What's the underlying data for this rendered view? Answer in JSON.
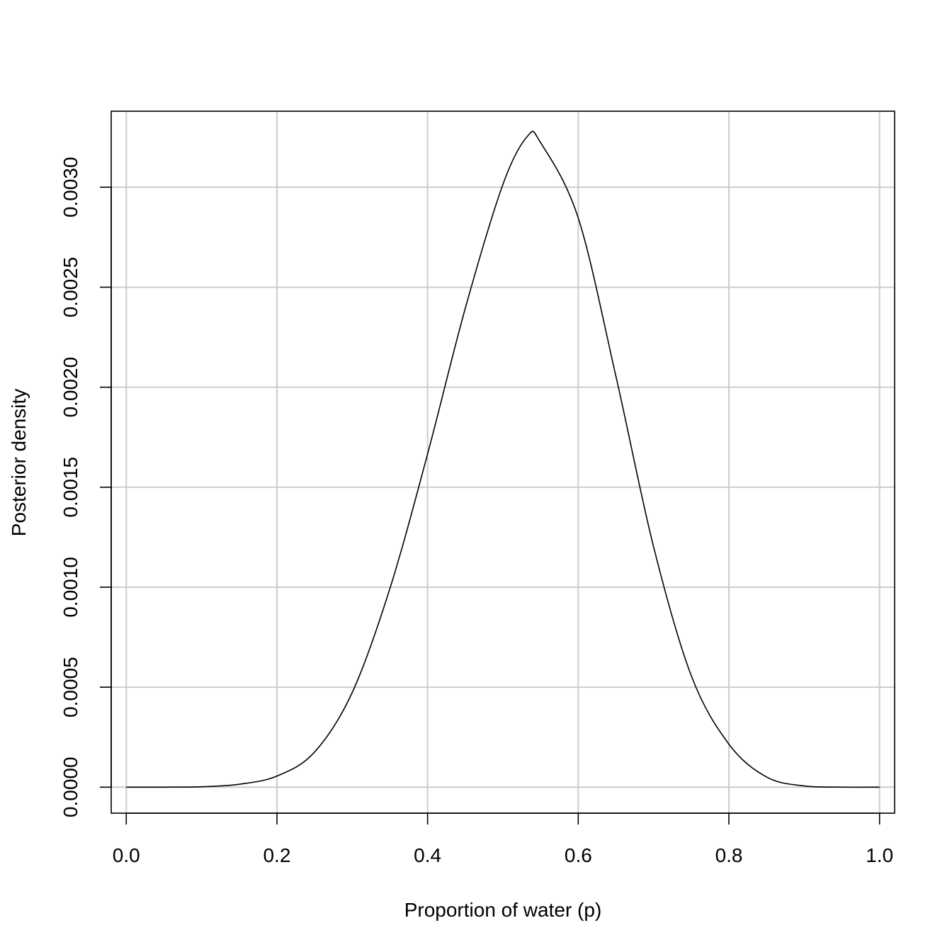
{
  "chart_data": {
    "type": "line",
    "title": "",
    "xlabel": "Proportion of water (p)",
    "ylabel": "Posterior density",
    "xlim": [
      -0.02,
      1.02
    ],
    "ylim": [
      -0.00013,
      0.00338
    ],
    "grid": true,
    "x_ticks": [
      0.0,
      0.2,
      0.4,
      0.6,
      0.8,
      1.0
    ],
    "x_tick_labels": [
      "0.0",
      "0.2",
      "0.4",
      "0.6",
      "0.8",
      "1.0"
    ],
    "y_ticks": [
      0.0,
      0.0005,
      0.001,
      0.0015,
      0.002,
      0.0025,
      0.003
    ],
    "y_tick_labels": [
      "0.0000",
      "0.0005",
      "0.0010",
      "0.0015",
      "0.0020",
      "0.0025",
      "0.0030"
    ],
    "series": [
      {
        "color": "#000000",
        "x": [
          0.0,
          0.05,
          0.1,
          0.15,
          0.2,
          0.25,
          0.3,
          0.35,
          0.4,
          0.45,
          0.5,
          0.533,
          0.55,
          0.6,
          0.65,
          0.7,
          0.75,
          0.8,
          0.85,
          0.9,
          0.95,
          1.0
        ],
        "y": [
          0.0,
          1e-07,
          2.2e-06,
          1.47e-05,
          5.56e-05,
          0.0001757,
          0.0004739,
          0.0009938,
          0.001666,
          0.002394,
          0.003014,
          0.003257,
          0.003223,
          0.002846,
          0.002055,
          0.001202,
          0.000558,
          0.000215,
          5.08e-05,
          6.1e-06,
          2e-07,
          0.0
        ]
      }
    ]
  }
}
